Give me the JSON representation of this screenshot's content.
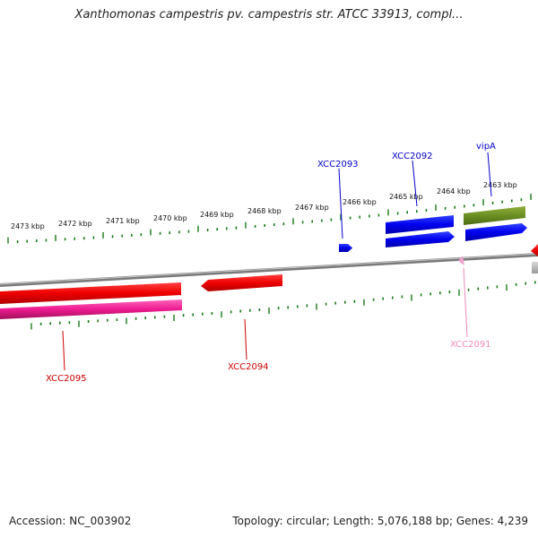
{
  "title": "Xanthomonas campestris pv. campestris str. ATCC 33913, compl...",
  "footer": {
    "accession": "Accession: NC_003902",
    "summary": "Topology: circular; Length: 5,076,188 bp; Genes: 4,239"
  },
  "ruler": {
    "labels": [
      "2473 kbp",
      "2472 kbp",
      "2471 kbp",
      "2470 kbp",
      "2469 kbp",
      "2468 kbp",
      "2467 kbp",
      "2466 kbp",
      "2465 kbp",
      "2464 kbp",
      "2463 kbp"
    ]
  },
  "genes": [
    {
      "name": "XCC2093",
      "color": "#0000cc"
    },
    {
      "name": "XCC2092",
      "color": "#0000cc"
    },
    {
      "name": "vipA",
      "color": "#0000cc"
    },
    {
      "name": "XCC2095",
      "color": "#cc0000"
    },
    {
      "name": "XCC2094",
      "color": "#cc0000"
    },
    {
      "name": "XCC2091",
      "color": "#ee88bb"
    }
  ],
  "colors": {
    "backbone": "#808080",
    "tick": "#1a7a1a",
    "forward_gene": "#0000ee",
    "reverse_gene": "#ee0000",
    "rna": "#ee1a90",
    "misc": "#6b8e23"
  }
}
